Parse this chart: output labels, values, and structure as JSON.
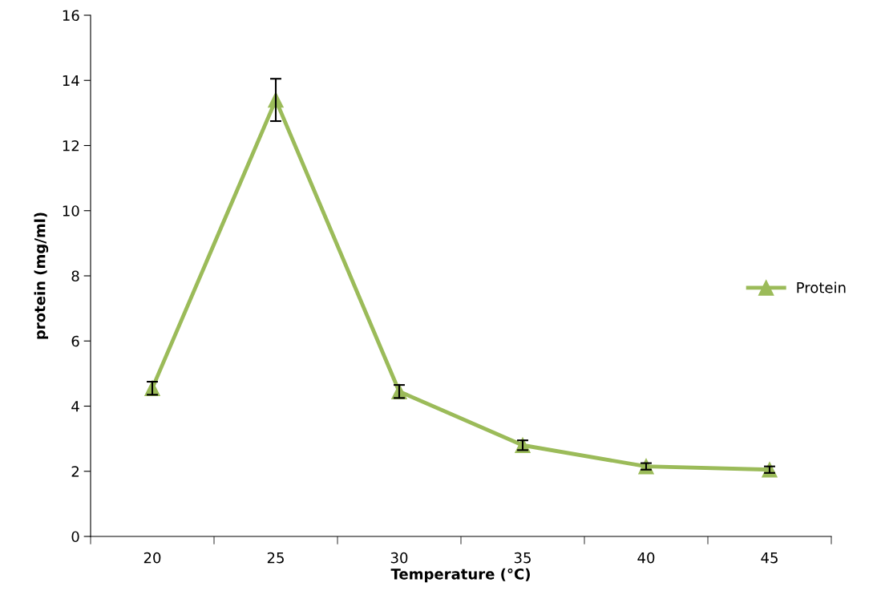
{
  "chart_data": {
    "type": "line",
    "xlabel": "Temperature (°C)",
    "ylabel": "protein (mg/ml)",
    "categories": [
      "20",
      "25",
      "30",
      "35",
      "40",
      "45"
    ],
    "series": [
      {
        "name": "Protein",
        "color": "#9bbb59",
        "values": [
          4.55,
          13.4,
          4.45,
          2.8,
          2.15,
          2.05
        ],
        "errors": [
          0.2,
          0.65,
          0.2,
          0.15,
          0.1,
          0.1
        ]
      }
    ],
    "ylim": [
      0,
      16
    ],
    "yticks": [
      0,
      2,
      4,
      6,
      8,
      10,
      12,
      14,
      16
    ],
    "marker": "triangle",
    "line_style": "solid",
    "grid": false,
    "legend": "right"
  }
}
